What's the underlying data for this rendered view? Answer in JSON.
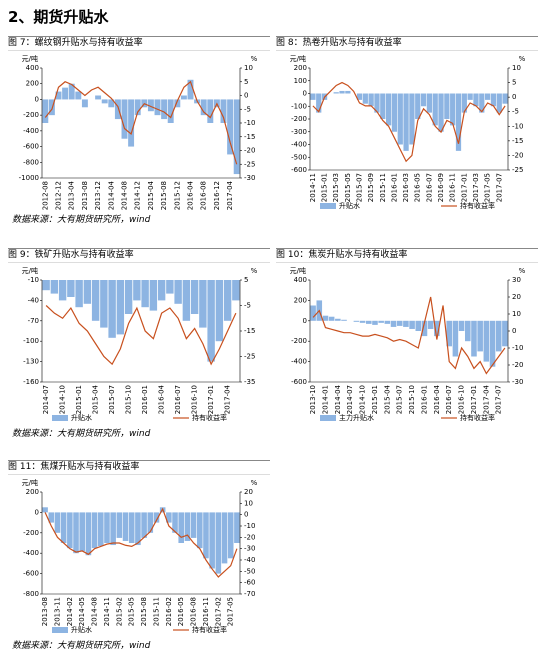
{
  "section_title": "2、期货升贴水",
  "sources": [
    "数据来源：大有期货研究所，wind",
    "数据来源：大有期货研究所，wind",
    "数据来源：大有期货研究所，wind"
  ],
  "chart_data": [
    {
      "type": "bar_line",
      "title": "图 7：螺纹钢升贴水与持有收益率",
      "y_label": "元/吨",
      "y2_label": "%",
      "categories": [
        "2012-08",
        null,
        "2012-12",
        null,
        "2013-04",
        null,
        "2013-08",
        null,
        "2013-12",
        null,
        "2014-04",
        null,
        "2014-08",
        null,
        "2014-12",
        null,
        "2015-04",
        null,
        "2015-08",
        null,
        "2015-12",
        null,
        "2016-04",
        null,
        "2016-08",
        null,
        "2016-12",
        null,
        "2017-04",
        null
      ],
      "ylim": [
        -1000,
        400
      ],
      "yticks": [
        -1000,
        -800,
        -600,
        -400,
        -200,
        0,
        200,
        400
      ],
      "y2lim": [
        -30,
        10
      ],
      "y2ticks": [
        -30,
        -25,
        -20,
        -15,
        -10,
        -5,
        0,
        5,
        10
      ],
      "series": [
        {
          "color": "#8db4e2",
          "values": [
            -300,
            -200,
            100,
            150,
            200,
            100,
            -100,
            0,
            50,
            -50,
            -100,
            -250,
            -500,
            -600,
            -200,
            -100,
            -150,
            -200,
            -250,
            -300,
            -100,
            50,
            250,
            -50,
            -200,
            -300,
            -100,
            -300,
            -700,
            -950
          ]
        },
        {
          "color": "#c8501e",
          "axis": "y2",
          "values": [
            -8,
            -5,
            3,
            5,
            4,
            2,
            0,
            2,
            3,
            1,
            -1,
            -4,
            -12,
            -14,
            -6,
            -3,
            -4,
            -5,
            -6,
            -8,
            -2,
            3,
            5,
            -2,
            -6,
            -8,
            -3,
            -8,
            -17,
            -25
          ]
        }
      ]
    },
    {
      "type": "bar_line",
      "title": "图 8：热卷升贴水与持有收益率",
      "y_label": "元/吨",
      "y2_label": "%",
      "categories": [
        "2014-11",
        null,
        "2015-01",
        null,
        "2015-03",
        null,
        "2015-05",
        null,
        "2015-07",
        null,
        "2015-09",
        null,
        "2015-11",
        null,
        "2016-01",
        null,
        "2016-03",
        null,
        "2016-05",
        null,
        "2016-07",
        null,
        "2016-09",
        null,
        "2016-11",
        null,
        "2017-01",
        null,
        "2017-03",
        null,
        "2017-05",
        null,
        "2017-07",
        null
      ],
      "ylim": [
        -600,
        200
      ],
      "yticks": [
        -600,
        -500,
        -400,
        -300,
        -200,
        -100,
        0,
        100,
        200
      ],
      "y2lim": [
        -25,
        10
      ],
      "y2ticks": [
        -25,
        -20,
        -15,
        -10,
        -5,
        0,
        5,
        10
      ],
      "series": [
        {
          "name": "升贴水",
          "color": "#8db4e2",
          "values": [
            -50,
            -150,
            -50,
            0,
            10,
            20,
            20,
            0,
            -50,
            -80,
            -100,
            -150,
            -200,
            -250,
            -300,
            -400,
            -450,
            -400,
            -200,
            -100,
            -150,
            -250,
            -300,
            -200,
            -250,
            -450,
            -150,
            -50,
            -100,
            -150,
            -50,
            -100,
            -150,
            -80
          ]
        },
        {
          "name": "持有收益率",
          "color": "#c8501e",
          "axis": "y2",
          "values": [
            -3,
            -5,
            0,
            2,
            4,
            5,
            4,
            2,
            -2,
            -3,
            -3,
            -5,
            -8,
            -10,
            -14,
            -18,
            -22,
            -20,
            -8,
            -4,
            -6,
            -10,
            -12,
            -8,
            -9,
            -16,
            -5,
            -2,
            -3,
            -5,
            -2,
            -3,
            -6,
            -3
          ]
        }
      ]
    },
    {
      "type": "bar_line",
      "title": "图 9：铁矿升贴水与持有收益率",
      "y_label": "元/吨",
      "y2_label": "%",
      "categories": [
        "2014-07",
        null,
        "2014-10",
        null,
        "2015-01",
        null,
        "2015-04",
        null,
        "2015-07",
        null,
        "2015-10",
        null,
        "2016-01",
        null,
        "2016-04",
        null,
        "2016-07",
        null,
        "2016-10",
        null,
        "2017-01",
        null,
        "2017-04",
        null
      ],
      "ylim": [
        -160,
        -10
      ],
      "yticks": [
        -160,
        -130,
        -100,
        -70,
        -40,
        -10
      ],
      "y2lim": [
        -35,
        5
      ],
      "y2ticks": [
        -35,
        -25,
        -15,
        -5,
        5
      ],
      "series": [
        {
          "name": "升贴水",
          "color": "#8db4e2",
          "values": [
            -25,
            -30,
            -40,
            -35,
            -50,
            -45,
            -70,
            -80,
            -95,
            -90,
            -60,
            -40,
            -50,
            -55,
            -40,
            -30,
            -45,
            -70,
            -60,
            -80,
            -130,
            -100,
            -70,
            -40
          ]
        },
        {
          "name": "持有收益率",
          "color": "#c8501e",
          "axis": "y2",
          "values": [
            -5,
            -8,
            -10,
            -6,
            -12,
            -15,
            -20,
            -25,
            -28,
            -22,
            -12,
            -6,
            -15,
            -18,
            -8,
            -6,
            -10,
            -18,
            -14,
            -20,
            -28,
            -22,
            -15,
            -8
          ]
        }
      ]
    },
    {
      "type": "bar_line",
      "title": "图 10：焦炭升贴水与持有收益率",
      "y_label": "元/吨",
      "y2_label": "%",
      "categories": [
        "2013-10",
        null,
        "2014-01",
        null,
        "2014-04",
        null,
        "2014-07",
        null,
        "2014-10",
        null,
        "2015-01",
        null,
        "2015-04",
        null,
        "2015-07",
        null,
        "2015-10",
        null,
        "2016-01",
        null,
        "2016-04",
        null,
        "2016-07",
        null,
        "2016-10",
        null,
        "2017-01",
        null,
        "2017-04",
        null,
        "2017-07",
        null
      ],
      "ylim": [
        -600,
        400
      ],
      "yticks": [
        -600,
        -400,
        -200,
        0,
        200,
        400
      ],
      "y2lim": [
        -30,
        30
      ],
      "y2ticks": [
        -30,
        -20,
        -10,
        0,
        10,
        20,
        30
      ],
      "series": [
        {
          "name": "主力升贴水",
          "color": "#8db4e2",
          "values": [
            150,
            200,
            50,
            40,
            20,
            10,
            0,
            -10,
            -20,
            -30,
            -40,
            -20,
            -30,
            -60,
            -50,
            -60,
            -80,
            -100,
            -150,
            -80,
            -150,
            0,
            -250,
            -350,
            -100,
            -200,
            -350,
            -300,
            -400,
            -450,
            -300,
            -250
          ]
        },
        {
          "name": "持有收益率",
          "color": "#c8501e",
          "axis": "y2",
          "values": [
            8,
            12,
            2,
            1,
            0,
            -1,
            -1,
            -2,
            -3,
            -3,
            -2,
            -3,
            -4,
            -6,
            -5,
            -6,
            -8,
            -10,
            5,
            20,
            -5,
            15,
            -18,
            -22,
            -10,
            -15,
            -22,
            -18,
            -25,
            -20,
            -15,
            -10
          ]
        }
      ]
    },
    {
      "type": "bar_line",
      "title": "图 11：焦煤升贴水与持有收益率",
      "y_label": "元/吨",
      "y2_label": "%",
      "categories": [
        "2013-08",
        null,
        "2013-11",
        null,
        "2014-02",
        null,
        "2014-05",
        null,
        "2014-08",
        null,
        "2014-11",
        null,
        "2015-02",
        null,
        "2015-05",
        null,
        "2015-08",
        null,
        "2015-11",
        null,
        "2016-02",
        null,
        "2016-05",
        null,
        "2016-08",
        null,
        "2016-11",
        null,
        "2017-02",
        null,
        "2017-05",
        null
      ],
      "ylim": [
        -800,
        200
      ],
      "yticks": [
        -800,
        -600,
        -400,
        -200,
        0,
        200
      ],
      "y2lim": [
        -70,
        20
      ],
      "y2ticks": [
        -70,
        -60,
        -50,
        -40,
        -30,
        -20,
        -10,
        0,
        10,
        20
      ],
      "series": [
        {
          "name": "升贴水",
          "color": "#8db4e2",
          "values": [
            50,
            -100,
            -200,
            -300,
            -350,
            -400,
            -380,
            -420,
            -350,
            -330,
            -300,
            -320,
            -250,
            -280,
            -300,
            -320,
            -250,
            -200,
            -100,
            50,
            -100,
            -200,
            -300,
            -280,
            -250,
            -350,
            -450,
            -550,
            -600,
            -500,
            -450,
            -300
          ]
        },
        {
          "name": "持有收益率",
          "color": "#c8501e",
          "axis": "y2",
          "values": [
            2,
            -10,
            -20,
            -25,
            -30,
            -33,
            -32,
            -35,
            -30,
            -28,
            -26,
            -25,
            -25,
            -27,
            -28,
            -25,
            -20,
            -15,
            -5,
            5,
            -10,
            -15,
            -20,
            -18,
            -25,
            -30,
            -40,
            -48,
            -55,
            -50,
            -45,
            -30
          ]
        }
      ]
    }
  ]
}
